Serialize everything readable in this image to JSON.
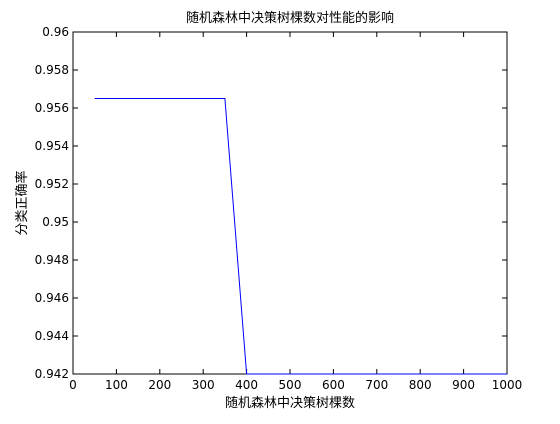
{
  "chart_data": {
    "type": "line",
    "title": "随机森林中决策树棵数对性能的影响",
    "xlabel": "随机森林中决策树棵数",
    "ylabel": "分类正确率",
    "xlim": [
      0,
      1000
    ],
    "ylim": [
      0.942,
      0.96
    ],
    "x_ticks": [
      0,
      100,
      200,
      300,
      400,
      500,
      600,
      700,
      800,
      900,
      1000
    ],
    "x_tick_labels": [
      "0",
      "100",
      "200",
      "300",
      "400",
      "500",
      "600",
      "700",
      "800",
      "900",
      "1000"
    ],
    "y_ticks": [
      0.942,
      0.944,
      0.946,
      0.948,
      0.95,
      0.952,
      0.954,
      0.956,
      0.958,
      0.96
    ],
    "y_tick_labels": [
      "0.942",
      "0.944",
      "0.946",
      "0.948",
      "0.95",
      "0.952",
      "0.954",
      "0.956",
      "0.958",
      "0.96"
    ],
    "grid": false,
    "legend": "none",
    "series": [
      {
        "color": "#0000ff",
        "x": [
          50,
          350,
          400,
          1000
        ],
        "y": [
          0.9565,
          0.9565,
          0.942,
          0.942
        ]
      }
    ]
  }
}
